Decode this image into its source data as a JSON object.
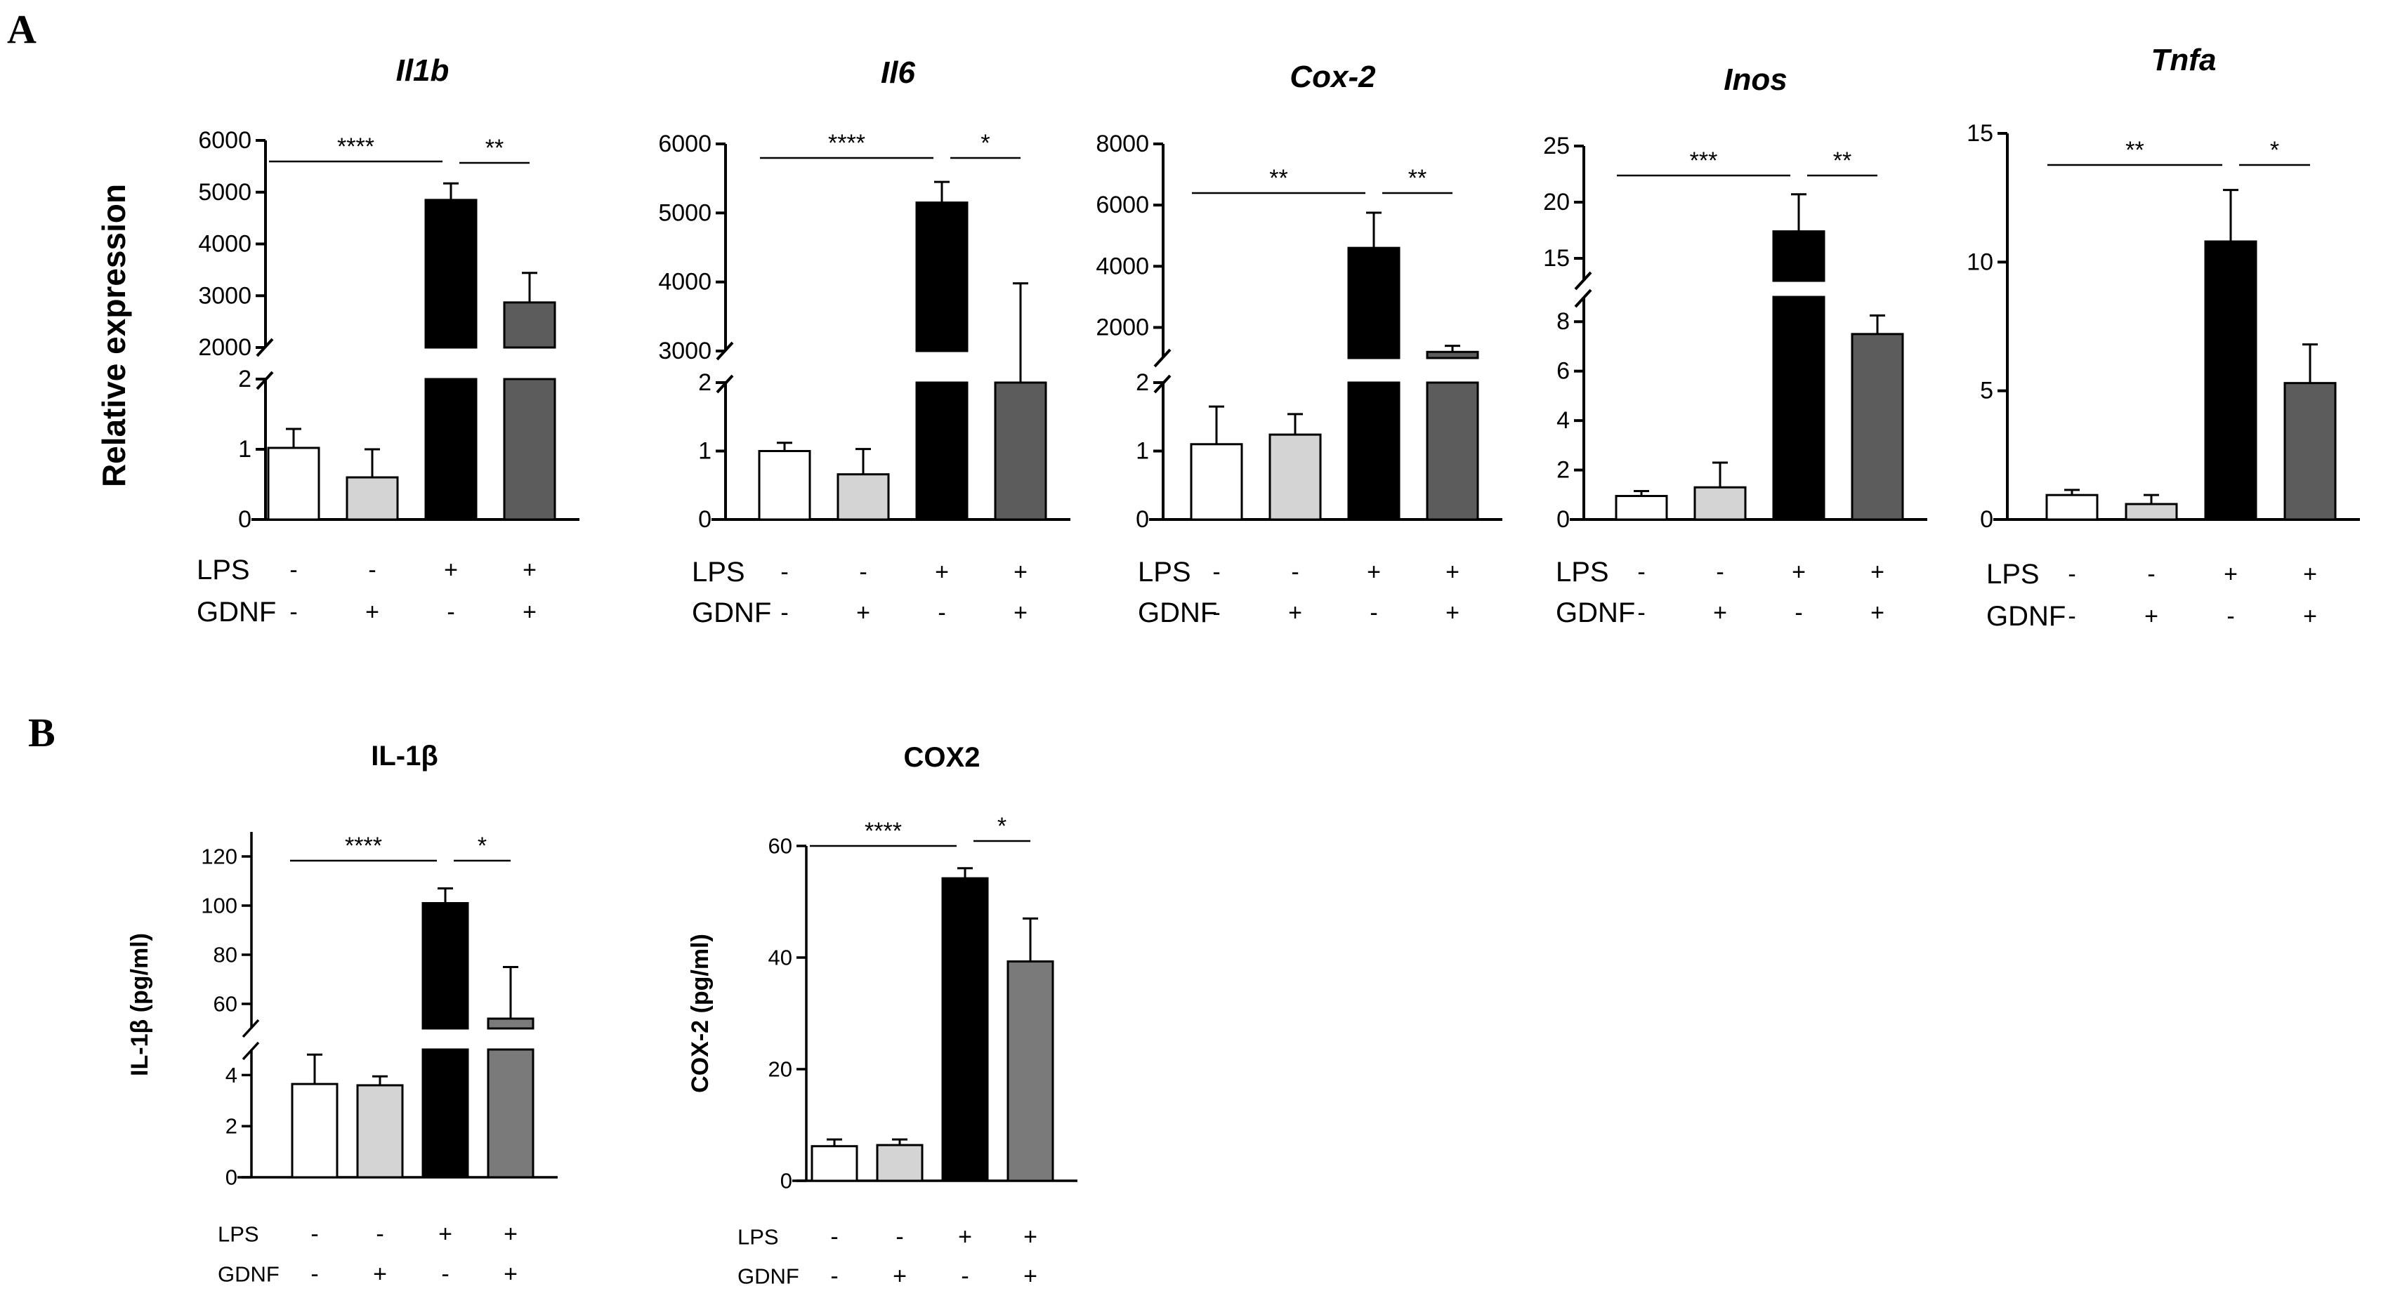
{
  "panels": [
    {
      "letter": "A",
      "ylabel": "Relative expression"
    },
    {
      "letter": "B"
    }
  ],
  "chart_data": [
    {
      "type": "bar",
      "panel": "A",
      "title": "Il1b",
      "title_italic": true,
      "ylabel": "Relative expression",
      "broken_axis": true,
      "lower": {
        "ylim": [
          0,
          2
        ],
        "ticks": [
          0,
          1,
          2
        ]
      },
      "upper": {
        "ylim": [
          2000,
          6000
        ],
        "ticks": [
          2000,
          3000,
          4000,
          5000,
          6000
        ]
      },
      "groups": [
        {
          "LPS": "-",
          "GDNF": "-",
          "value": 1.02,
          "error": 0.27,
          "color": "#ffffff"
        },
        {
          "LPS": "-",
          "GDNF": "+",
          "value": 0.6,
          "error": 0.4,
          "color": "#d4d4d4"
        },
        {
          "LPS": "+",
          "GDNF": "-",
          "value": 4850,
          "error": 320,
          "color": "#000000"
        },
        {
          "LPS": "+",
          "GDNF": "+",
          "value": 2870,
          "error": 570,
          "color": "#5c5c5c"
        }
      ],
      "significance": [
        {
          "from": 0,
          "to": 2,
          "label": "****"
        },
        {
          "from": 2,
          "to": 3,
          "label": "**"
        }
      ],
      "factors": [
        "LPS",
        "GDNF"
      ]
    },
    {
      "type": "bar",
      "panel": "A",
      "title": "Il6",
      "title_italic": true,
      "broken_axis": true,
      "lower": {
        "ylim": [
          0,
          2
        ],
        "ticks": [
          0,
          1,
          2
        ]
      },
      "upper": {
        "ylim": [
          3000,
          6000
        ],
        "ticks": [
          3000,
          4000,
          5000,
          6000
        ]
      },
      "groups": [
        {
          "LPS": "-",
          "GDNF": "-",
          "value": 1.0,
          "error": 0.12,
          "color": "#ffffff"
        },
        {
          "LPS": "-",
          "GDNF": "+",
          "value": 0.66,
          "error": 0.37,
          "color": "#d4d4d4"
        },
        {
          "LPS": "+",
          "GDNF": "-",
          "value": 5150,
          "error": 300,
          "color": "#000000"
        },
        {
          "LPS": "+",
          "GDNF": "+",
          "value": 2200,
          "error": 1780,
          "color": "#5c5c5c"
        }
      ],
      "significance": [
        {
          "from": 0,
          "to": 2,
          "label": "****"
        },
        {
          "from": 2,
          "to": 3,
          "label": "*"
        }
      ],
      "factors": [
        "LPS",
        "GDNF"
      ]
    },
    {
      "type": "bar",
      "panel": "A",
      "title": "Cox-2",
      "title_italic": true,
      "broken_axis": true,
      "lower": {
        "ylim": [
          0,
          2
        ],
        "ticks": [
          0,
          1,
          2
        ]
      },
      "upper": {
        "ylim": [
          1000,
          8000
        ],
        "ticks": [
          2000,
          4000,
          6000,
          8000
        ]
      },
      "groups": [
        {
          "LPS": "-",
          "GDNF": "-",
          "value": 1.1,
          "error": 0.55,
          "color": "#ffffff"
        },
        {
          "LPS": "-",
          "GDNF": "+",
          "value": 1.24,
          "error": 0.3,
          "color": "#d4d4d4"
        },
        {
          "LPS": "+",
          "GDNF": "-",
          "value": 4600,
          "error": 1150,
          "color": "#000000"
        },
        {
          "LPS": "+",
          "GDNF": "+",
          "value": 1200,
          "error": 200,
          "color": "#5c5c5c"
        }
      ],
      "significance": [
        {
          "from": 0,
          "to": 2,
          "label": "**"
        },
        {
          "from": 2,
          "to": 3,
          "label": "**"
        }
      ],
      "factors": [
        "LPS",
        "GDNF"
      ]
    },
    {
      "type": "bar",
      "panel": "A",
      "title": "Inos",
      "title_italic": true,
      "broken_axis": true,
      "lower": {
        "ylim": [
          0,
          9
        ],
        "ticks": [
          0,
          2,
          4,
          6,
          8
        ]
      },
      "upper": {
        "ylim": [
          13,
          25
        ],
        "ticks": [
          15,
          20,
          25
        ]
      },
      "groups": [
        {
          "LPS": "-",
          "GDNF": "-",
          "value": 0.95,
          "error": 0.2,
          "color": "#ffffff"
        },
        {
          "LPS": "-",
          "GDNF": "+",
          "value": 1.3,
          "error": 1.0,
          "color": "#d4d4d4"
        },
        {
          "LPS": "+",
          "GDNF": "-",
          "value": 17.4,
          "error": 3.3,
          "color": "#000000"
        },
        {
          "LPS": "+",
          "GDNF": "+",
          "value": 7.5,
          "error": 0.75,
          "color": "#5c5c5c"
        }
      ],
      "significance": [
        {
          "from": 0,
          "to": 2,
          "label": "***"
        },
        {
          "from": 2,
          "to": 3,
          "label": "**"
        }
      ],
      "factors": [
        "LPS",
        "GDNF"
      ]
    },
    {
      "type": "bar",
      "panel": "A",
      "title": "Tnfa",
      "title_italic": true,
      "broken_axis": false,
      "ylim": [
        0,
        15
      ],
      "ticks": [
        0,
        5,
        10,
        15
      ],
      "groups": [
        {
          "LPS": "-",
          "GDNF": "-",
          "value": 0.95,
          "error": 0.2,
          "color": "#ffffff"
        },
        {
          "LPS": "-",
          "GDNF": "+",
          "value": 0.6,
          "error": 0.35,
          "color": "#d4d4d4"
        },
        {
          "LPS": "+",
          "GDNF": "-",
          "value": 10.8,
          "error": 2.0,
          "color": "#000000"
        },
        {
          "LPS": "+",
          "GDNF": "+",
          "value": 5.3,
          "error": 1.5,
          "color": "#5c5c5c"
        }
      ],
      "significance": [
        {
          "from": 0,
          "to": 2,
          "label": "**"
        },
        {
          "from": 2,
          "to": 3,
          "label": "*"
        }
      ],
      "factors": [
        "LPS",
        "GDNF"
      ]
    },
    {
      "type": "bar",
      "panel": "B",
      "title": "IL-1β",
      "title_italic": false,
      "ylabel": "IL-1β (pg/ml)",
      "broken_axis": true,
      "lower": {
        "ylim": [
          0,
          5
        ],
        "ticks": [
          0,
          2,
          4
        ]
      },
      "upper": {
        "ylim": [
          50,
          130
        ],
        "ticks": [
          60,
          80,
          100,
          120
        ]
      },
      "groups": [
        {
          "LPS": "-",
          "GDNF": "-",
          "value": 3.65,
          "error": 1.15,
          "color": "#ffffff"
        },
        {
          "LPS": "-",
          "GDNF": "+",
          "value": 3.6,
          "error": 0.35,
          "color": "#d4d4d4"
        },
        {
          "LPS": "+",
          "GDNF": "-",
          "value": 101,
          "error": 6,
          "color": "#000000"
        },
        {
          "LPS": "+",
          "GDNF": "+",
          "value": 54,
          "error": 21,
          "color": "#7a7a7a"
        }
      ],
      "significance": [
        {
          "from": 0,
          "to": 2,
          "label": "****"
        },
        {
          "from": 2,
          "to": 3,
          "label": "*"
        }
      ],
      "factors": [
        "LPS",
        "GDNF"
      ]
    },
    {
      "type": "bar",
      "panel": "B",
      "title": "COX2",
      "title_italic": false,
      "ylabel": "COX-2 (pg/ml)",
      "broken_axis": false,
      "ylim": [
        0,
        60
      ],
      "ticks": [
        0,
        20,
        40,
        60
      ],
      "groups": [
        {
          "LPS": "-",
          "GDNF": "-",
          "value": 6.2,
          "error": 1.2,
          "color": "#ffffff"
        },
        {
          "LPS": "-",
          "GDNF": "+",
          "value": 6.4,
          "error": 1.0,
          "color": "#d4d4d4"
        },
        {
          "LPS": "+",
          "GDNF": "-",
          "value": 54.2,
          "error": 1.8,
          "color": "#000000"
        },
        {
          "LPS": "+",
          "GDNF": "+",
          "value": 39.3,
          "error": 7.7,
          "color": "#7a7a7a"
        }
      ],
      "significance": [
        {
          "from": 0,
          "to": 2,
          "label": "****"
        },
        {
          "from": 2,
          "to": 3,
          "label": "*"
        }
      ],
      "factors": [
        "LPS",
        "GDNF"
      ]
    }
  ]
}
